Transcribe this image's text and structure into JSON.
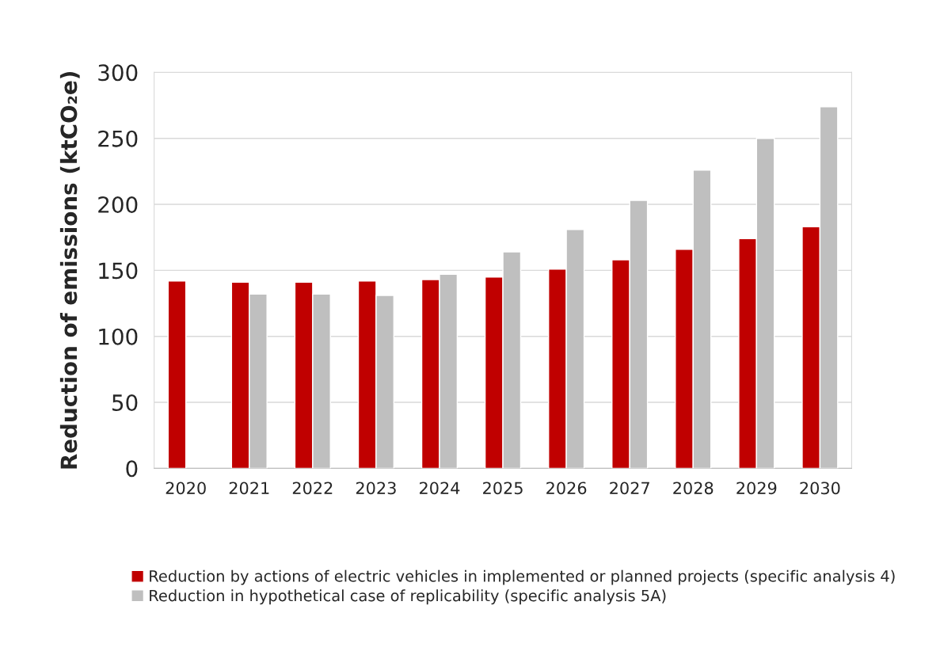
{
  "chart_data": {
    "type": "bar",
    "ylabel": "Reduction of emissions (ktCO₂e)",
    "categories": [
      "2020",
      "2021",
      "2022",
      "2023",
      "2024",
      "2025",
      "2026",
      "2027",
      "2028",
      "2029",
      "2030"
    ],
    "series": [
      {
        "name": "Reduction by actions of electric vehicles in implemented or planned projects (specific analysis 4)",
        "color": "#c00000",
        "values": [
          142,
          141,
          141,
          142,
          143,
          145,
          151,
          158,
          166,
          174,
          183
        ]
      },
      {
        "name": "Reduction in hypothetical case of replicability (specific analysis 5A)",
        "color": "#bfbfbf",
        "values": [
          null,
          132,
          132,
          131,
          147,
          164,
          181,
          203,
          226,
          250,
          274
        ]
      }
    ],
    "ylim": [
      0,
      300
    ],
    "yticks": [
      0,
      50,
      100,
      150,
      200,
      250,
      300
    ],
    "grid": "y",
    "legend": "bottom"
  }
}
